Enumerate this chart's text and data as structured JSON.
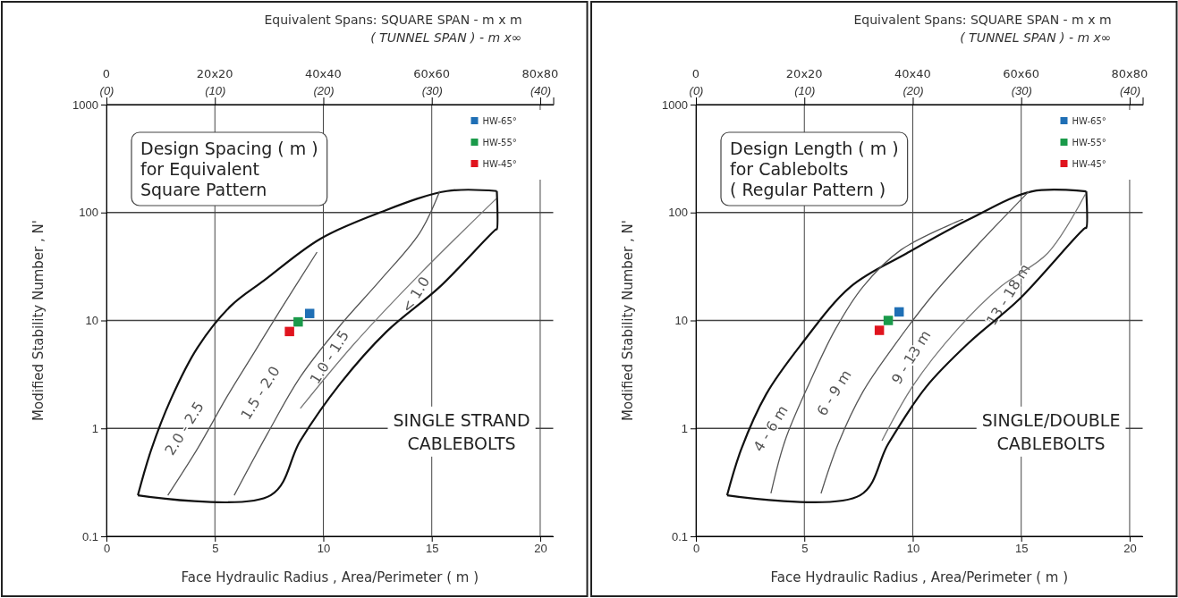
{
  "chart_data": [
    {
      "type": "line",
      "xlabel": "Face Hydraulic Radius , Area/Perimeter  ( m )",
      "ylabel": "Modified Stability Number , N'",
      "x2label": "Equivalent Spans:  SQUARE SPAN   -   m x m\n( TUNNEL  SPAN ) -   m x∞",
      "log": "y",
      "grid": true,
      "legend": "top right",
      "line_style": "solid",
      "marker": "none",
      "xlim": [
        0,
        20.6
      ],
      "xticks": [
        0,
        5,
        10,
        15,
        20
      ],
      "ylim": [
        0.1,
        1000
      ],
      "yticks": [
        0.1,
        1,
        10,
        100,
        1000
      ],
      "x2lim": [
        0,
        41.2
      ],
      "x2ticks": [
        {
          "value": 0,
          "label": "(0)"
        },
        {
          "value": 10,
          "label": "(10)"
        },
        {
          "value": 20,
          "label": "(20)"
        },
        {
          "value": 30,
          "label": "(30)"
        },
        {
          "value": 40,
          "label": "(40)"
        }
      ],
      "series": [
        {
          "color": "#111111",
          "x": [
            1.45,
            2.06,
            2.98,
            4.2,
            5.73,
            7.26,
            9.86,
            12.6,
            15.7,
            18
          ],
          "values": [
            0.24,
            0.63,
            1.88,
            5.6,
            13.6,
            23.4,
            57,
            100,
            158,
            158
          ]
        },
        {
          "color": "#555555",
          "x": [
            2.83,
            4.2,
            5.58,
            6.8,
            8.03,
            9.71
          ],
          "values": [
            0.24,
            0.65,
            2.0,
            5.0,
            12.6,
            43
          ]
        },
        {
          "color": "#555555",
          "x": [
            5.89,
            7.42,
            8.94,
            10.78,
            12.61,
            14.45,
            15.37
          ],
          "values": [
            0.24,
            0.89,
            3.0,
            9.0,
            23.4,
            65,
            158
          ]
        },
        {
          "color": "#777777",
          "x": [
            8.94,
            11.4,
            14.45,
            17.97
          ],
          "values": [
            1.53,
            6.0,
            26.9,
            134
          ]
        },
        {
          "color": "#111111",
          "x": [
            1.45,
            7.57,
            8.94,
            10.78,
            12.92,
            15.37,
            17.97,
            18,
            18
          ],
          "values": [
            0.24,
            0.24,
            0.77,
            2.6,
            7.9,
            20.5,
            70,
            70,
            158
          ]
        },
        {
          "type": "scatter",
          "marker": "square",
          "name": "HW-65°",
          "color": "#1f6fb5",
          "x": [
            9.37
          ],
          "values": [
            11.6
          ]
        },
        {
          "type": "scatter",
          "marker": "square",
          "name": "HW-55°",
          "color": "#1a9a4a",
          "x": [
            8.84
          ],
          "values": [
            9.7
          ]
        },
        {
          "type": "scatter",
          "marker": "square",
          "name": "HW-45°",
          "color": "#e0141e",
          "x": [
            8.44
          ],
          "values": [
            7.9
          ]
        }
      ],
      "annotations": [
        "Design Spacing ( m )\nfor Equivalent\nSquare Pattern",
        "SINGLE STRAND\nCABLEBOLTS",
        "2.0 - 2.5",
        "1.5 - 2.0",
        "1.0 - 1.5",
        "< 1.0",
        "0",
        "20x20",
        "40x40",
        "60x60",
        "80x80"
      ]
    },
    {
      "type": "line",
      "xlabel": "Face Hydraulic Radius , Area/Perimeter  ( m )",
      "ylabel": "Modified Stability Number , N'",
      "x2label": "Equivalent Spans:  SQUARE SPAN   -   m x m\n( TUNNEL  SPAN ) -   m x∞",
      "log": "y",
      "grid": true,
      "legend": "top right",
      "line_style": "solid",
      "marker": "none",
      "xlim": [
        0,
        20.6
      ],
      "xticks": [
        0,
        5,
        10,
        15,
        20
      ],
      "ylim": [
        0.1,
        1000
      ],
      "yticks": [
        0.1,
        1,
        10,
        100,
        1000
      ],
      "x2lim": [
        0,
        41.2
      ],
      "x2ticks": [
        {
          "value": 0,
          "label": "(0)"
        },
        {
          "value": 10,
          "label": "(10)"
        },
        {
          "value": 20,
          "label": "(20)"
        },
        {
          "value": 30,
          "label": "(30)"
        },
        {
          "value": 40,
          "label": "(40)"
        }
      ],
      "series": [
        {
          "color": "#111111",
          "x": [
            1.44,
            2.09,
            3.24,
            4.83,
            7.14,
            9.73,
            12.62,
            15.5,
            18
          ],
          "values": [
            0.24,
            0.64,
            2.07,
            5.9,
            20.6,
            42,
            87,
            157,
            157
          ]
        },
        {
          "color": "#555555",
          "x": [
            3.46,
            4.11,
            5.26,
            6.42,
            7.71,
            9.45,
            12.33
          ],
          "values": [
            0.25,
            0.77,
            2.7,
            8.2,
            20.6,
            45,
            87
          ]
        },
        {
          "color": "#555555",
          "x": [
            5.77,
            6.56,
            7.71,
            9.16,
            10.89,
            13.05,
            15.36
          ],
          "values": [
            0.25,
            0.72,
            2.2,
            5.9,
            16.9,
            51.5,
            157
          ]
        },
        {
          "color": "#777777",
          "x": [
            8.58,
            10.02,
            12.04,
            14.06,
            16.22,
            17.95
          ],
          "values": [
            0.77,
            2.5,
            8.2,
            20.6,
            42,
            147
          ]
        },
        {
          "color": "#111111",
          "x": [
            1.44,
            7.57,
            8.87,
            10.6,
            12.62,
            14.92,
            17.95,
            18,
            18
          ],
          "values": [
            0.24,
            0.24,
            0.72,
            2.4,
            6.3,
            15.8,
            72,
            72,
            157
          ]
        },
        {
          "type": "scatter",
          "marker": "square",
          "name": "HW-65°",
          "color": "#1f6fb5",
          "x": [
            9.37
          ],
          "values": [
            12.0
          ]
        },
        {
          "type": "scatter",
          "marker": "square",
          "name": "HW-55°",
          "color": "#1a9a4a",
          "x": [
            8.87
          ],
          "values": [
            10
          ]
        },
        {
          "type": "scatter",
          "marker": "square",
          "name": "HW-45°",
          "color": "#e0141e",
          "x": [
            8.46
          ],
          "values": [
            8.1
          ]
        }
      ],
      "annotations": [
        "Design Length ( m )\nfor Cablebolts\n( Regular Pattern )",
        "SINGLE/DOUBLE\nCABLEBOLTS",
        "4 - 6 m",
        "6 - 9 m",
        "9 - 13 m",
        "13 - 18 m",
        "0",
        "20x20",
        "40x40",
        "60x60",
        "80x80"
      ]
    }
  ]
}
